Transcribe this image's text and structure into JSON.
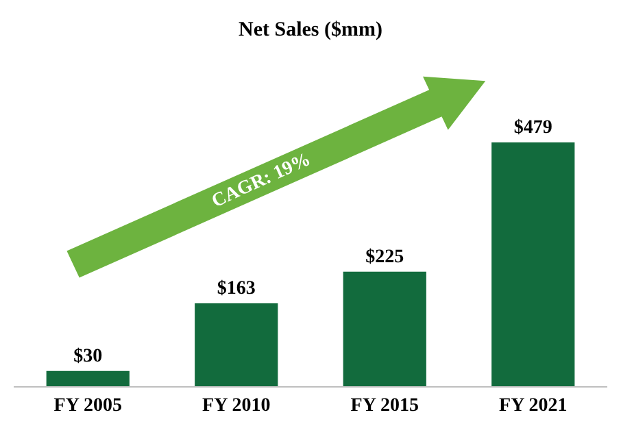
{
  "chart_data": {
    "type": "bar",
    "title": "Net Sales ($mm)",
    "categories": [
      "FY 2005",
      "FY 2010",
      "FY 2015",
      "FY 2021"
    ],
    "values": [
      30,
      163,
      225,
      479
    ],
    "value_labels": [
      "$30",
      "$163",
      "$225",
      "$479"
    ],
    "color": "#126b3d",
    "annotations": [
      "CAGR: 19%"
    ],
    "legend": false
  }
}
